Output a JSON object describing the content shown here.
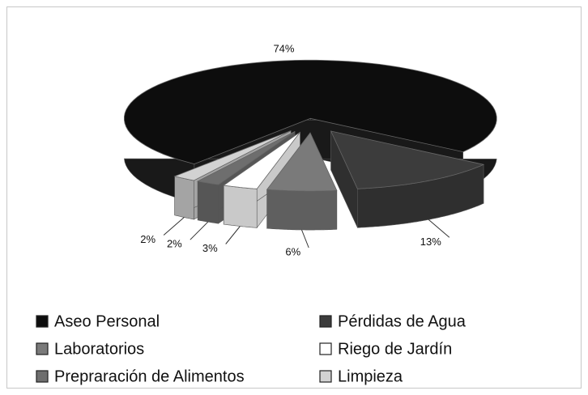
{
  "chart_data": {
    "type": "pie",
    "categories": [
      "Aseo Personal",
      "Pérdidas de Agua",
      "Laboratorios",
      "Riego de Jardín",
      "Prepraración de Alimentos",
      "Limpieza"
    ],
    "values": [
      74,
      13,
      6,
      3,
      2,
      2
    ],
    "value_labels": [
      "74%",
      "13%",
      "6%",
      "3%",
      "2%",
      "2%"
    ],
    "colors": [
      "#0d0d0d",
      "#3c3c3c",
      "#7a7a7a",
      "#ffffff",
      "#6e6e6e",
      "#d2d2d2"
    ]
  }
}
